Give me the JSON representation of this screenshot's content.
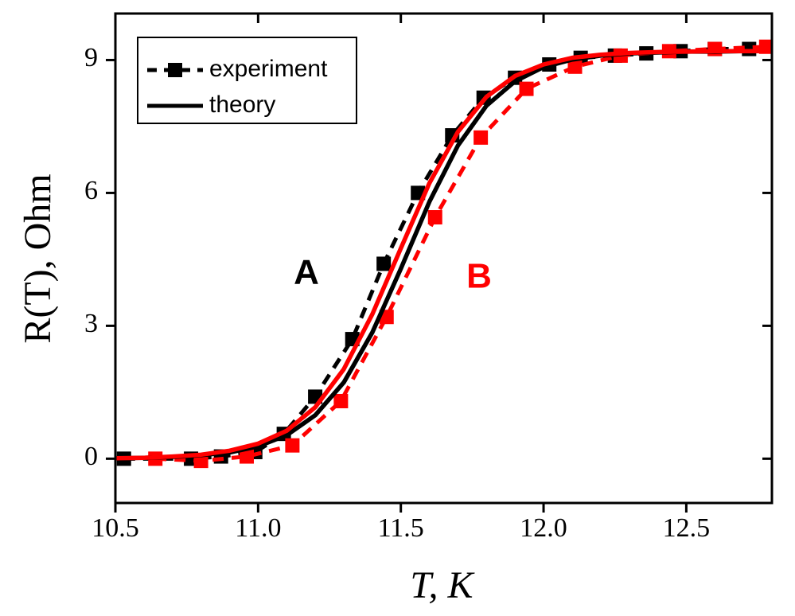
{
  "chart_data": {
    "type": "line",
    "xlabel": "T, K",
    "ylabel": "R(T), Ohm",
    "xlim": [
      10.5,
      12.8
    ],
    "ylim": [
      -1,
      10.05
    ],
    "xticks": [
      10.5,
      {
        "value": 11,
        "label": "11.0"
      },
      11.5,
      {
        "value": 12,
        "label": "12.0"
      },
      12.5
    ],
    "yticks": [
      0,
      3,
      6,
      9
    ],
    "legend": "upper left",
    "annotations": [
      {
        "text": "A",
        "color": "#000000"
      },
      {
        "text": "B",
        "color": "#ff0000"
      }
    ],
    "series": [
      {
        "name": "experiment",
        "color": "#000000",
        "line": "dashed",
        "marker": "square",
        "x": [
          10.53,
          10.765,
          10.87,
          10.99,
          11.09,
          11.2,
          11.33,
          11.44,
          11.56,
          11.68,
          11.79,
          11.9,
          12.02,
          12.13,
          12.25,
          12.36,
          12.48,
          12.6,
          12.72
        ],
        "values": [
          0,
          0,
          0.05,
          0.15,
          0.56,
          1.4,
          2.7,
          4.4,
          6.0,
          7.3,
          8.15,
          8.6,
          8.9,
          9.05,
          9.1,
          9.15,
          9.2,
          9.25,
          9.25
        ]
      },
      {
        "color": "#ff0000",
        "line": "dashed",
        "marker": "square",
        "x": [
          10.64,
          10.8,
          10.96,
          11.12,
          11.29,
          11.45,
          11.62,
          11.78,
          11.94,
          12.11,
          12.27,
          12.44,
          12.6,
          12.78
        ],
        "values": [
          0,
          -0.05,
          0.05,
          0.3,
          1.3,
          3.2,
          5.45,
          7.25,
          8.35,
          8.85,
          9.1,
          9.2,
          9.25,
          9.3
        ]
      },
      {
        "name": "theory",
        "color": "#000000",
        "line": "solid",
        "x": [
          10.5,
          10.6,
          10.7,
          10.8,
          10.9,
          11.0,
          11.1,
          11.2,
          11.3,
          11.4,
          11.5,
          11.6,
          11.7,
          11.8,
          11.9,
          12.0,
          12.1,
          12.2,
          12.3,
          12.4,
          12.5,
          12.6,
          12.7,
          12.8
        ],
        "values": [
          0.01,
          0.02,
          0.04,
          0.08,
          0.14,
          0.28,
          0.53,
          0.98,
          1.72,
          2.85,
          4.29,
          5.8,
          7.07,
          7.97,
          8.52,
          8.84,
          9.01,
          9.1,
          9.15,
          9.17,
          9.19,
          9.19,
          9.2,
          9.2
        ]
      },
      {
        "color": "#ff0000",
        "line": "solid",
        "x": [
          10.5,
          10.6,
          10.7,
          10.8,
          10.9,
          11.0,
          11.1,
          11.2,
          11.3,
          11.4,
          11.5,
          11.6,
          11.7,
          11.8,
          11.9,
          12.0,
          12.1,
          12.2,
          12.3,
          12.4,
          12.5,
          12.6,
          12.7,
          12.8
        ],
        "values": [
          0.01,
          0.02,
          0.05,
          0.09,
          0.18,
          0.34,
          0.63,
          1.16,
          2.02,
          3.26,
          4.75,
          6.22,
          7.38,
          8.17,
          8.64,
          8.9,
          9.05,
          9.12,
          9.16,
          9.18,
          9.19,
          9.2,
          9.2,
          9.2
        ]
      }
    ]
  }
}
